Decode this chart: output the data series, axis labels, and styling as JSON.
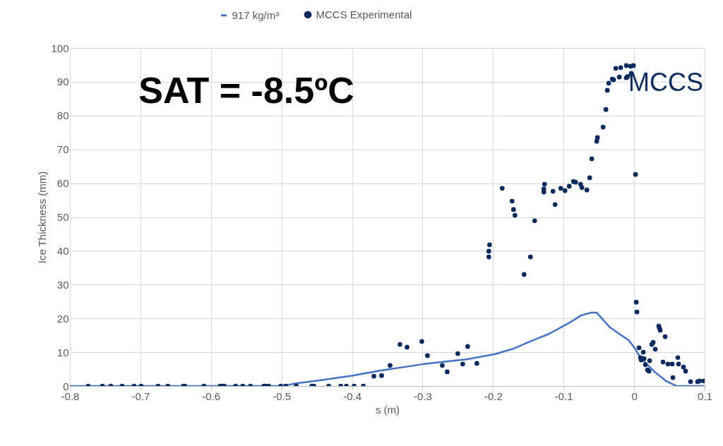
{
  "chart_data": {
    "type": "line",
    "xlabel": "s (m)",
    "ylabel": "Ice Thickness (mm)",
    "xlim": [
      -0.8,
      0.1
    ],
    "xticks": [
      -0.8,
      -0.7,
      -0.6,
      -0.5,
      -0.4,
      -0.3,
      -0.2,
      -0.1,
      0,
      0.1
    ],
    "ylim": [
      0,
      100
    ],
    "yticks": [
      0,
      10,
      20,
      30,
      40,
      50,
      60,
      70,
      80,
      90,
      100
    ],
    "grid": true,
    "legend": "top",
    "annotations": [
      "SAT = -8.5ºC",
      "MCCS"
    ],
    "series": [
      {
        "name": "917 kg/m³",
        "color": "#4472c4",
        "x": [
          -0.8,
          -0.6,
          -0.5,
          -0.479,
          -0.439,
          -0.399,
          -0.359,
          -0.298,
          -0.238,
          -0.198,
          -0.173,
          -0.145,
          -0.121,
          -0.091,
          -0.075,
          -0.061,
          -0.053,
          -0.045,
          -0.035,
          -0.021,
          -0.008,
          0.0,
          0.009,
          0.029,
          0.045,
          0.06,
          0.1
        ],
        "values": [
          0,
          0,
          0,
          0.8,
          1.9,
          3.1,
          4.6,
          6.5,
          7.9,
          9.4,
          10.9,
          13.4,
          15.4,
          18.8,
          20.9,
          21.7,
          21.7,
          19.8,
          17.5,
          15.4,
          13.6,
          11.5,
          8.4,
          4.2,
          1.5,
          0,
          0
        ]
      },
      {
        "name": "MCCS Experimental",
        "type": "scatter",
        "color": "#0b2a5e",
        "marker": "circle",
        "x": [
          -0.774,
          -0.754,
          -0.742,
          -0.726,
          -0.709,
          -0.699,
          -0.675,
          -0.661,
          -0.639,
          -0.637,
          -0.61,
          -0.587,
          -0.584,
          -0.581,
          -0.565,
          -0.555,
          -0.544,
          -0.525,
          -0.523,
          -0.518,
          -0.501,
          -0.494,
          -0.479,
          -0.457,
          -0.454,
          -0.433,
          -0.416,
          -0.408,
          -0.397,
          -0.384,
          -0.369,
          -0.358,
          -0.346,
          -0.332,
          -0.322,
          -0.301,
          -0.293,
          -0.272,
          -0.265,
          -0.25,
          -0.243,
          -0.236,
          -0.223,
          -0.206,
          -0.206,
          -0.205,
          -0.156,
          -0.147,
          -0.141,
          -0.169,
          -0.187,
          -0.173,
          -0.171,
          -0.128,
          -0.128,
          -0.127,
          -0.115,
          -0.112,
          -0.104,
          -0.098,
          -0.092,
          -0.086,
          -0.083,
          -0.076,
          -0.074,
          -0.067,
          -0.063,
          -0.06,
          -0.053,
          -0.052,
          -0.044,
          -0.04,
          -0.038,
          -0.036,
          -0.031,
          -0.029,
          -0.026,
          -0.019,
          -0.021,
          -0.011,
          -0.011,
          -0.009,
          -0.005,
          -0.004,
          -0.001,
          0.002,
          0.003,
          0.004,
          0.007,
          0.013,
          0.009,
          0.01,
          0.014,
          0.016,
          0.019,
          0.021,
          0.022,
          0.025,
          0.027,
          0.03,
          0.035,
          0.036,
          0.037,
          0.041,
          0.044,
          0.048,
          0.054,
          0.055,
          0.062,
          0.063,
          0.07,
          0.073,
          0.08,
          0.09,
          0.093,
          0.099
        ],
        "values": [
          0,
          0,
          0,
          0,
          0,
          0,
          0,
          0,
          0,
          0,
          0,
          0,
          0,
          0,
          0,
          0,
          0,
          0,
          0,
          0,
          0,
          0,
          0,
          0,
          0,
          0,
          0,
          0,
          0,
          0,
          2.9,
          3.1,
          6.1,
          12.3,
          11.5,
          13.2,
          9.0,
          6.1,
          4.2,
          9.6,
          6.5,
          11.7,
          6.7,
          38.2,
          39.9,
          41.8,
          33.0,
          38.2,
          48.9,
          50.5,
          58.5,
          54.7,
          52.2,
          57.4,
          58.3,
          59.7,
          57.6,
          53.7,
          58.5,
          57.8,
          59.1,
          60.5,
          60.3,
          59.7,
          58.7,
          58.0,
          61.6,
          67.2,
          72.4,
          73.5,
          76.6,
          81.8,
          87.5,
          89.6,
          90.8,
          90.6,
          94.0,
          94.2,
          91.4,
          94.8,
          91.2,
          91.6,
          94.6,
          92.5,
          94.8,
          62.6,
          24.8,
          21.9,
          11.3,
          10.0,
          8.4,
          7.7,
          8.1,
          6.3,
          4.8,
          4.4,
          7.5,
          12.3,
          12.9,
          10.9,
          17.7,
          17.1,
          16.5,
          7.1,
          14.6,
          6.5,
          6.5,
          2.5,
          8.4,
          6.5,
          5.6,
          4.4,
          1.3,
          1.3,
          1.5,
          1.5
        ]
      }
    ]
  }
}
